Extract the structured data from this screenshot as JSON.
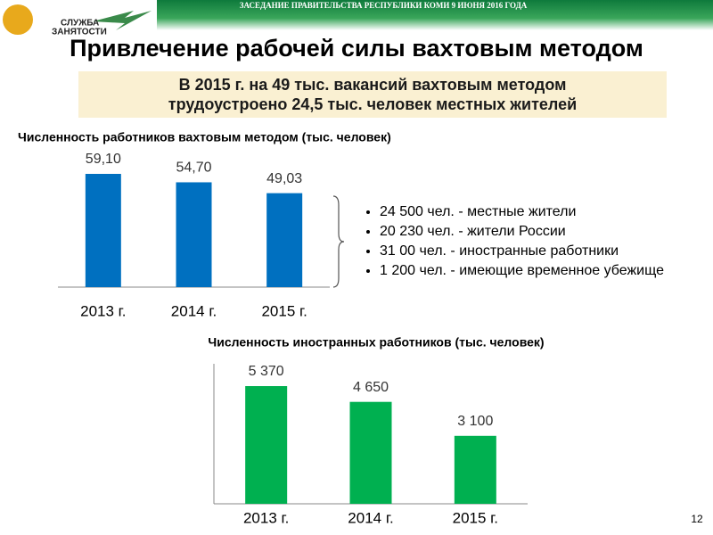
{
  "header": {
    "meeting": "ЗАСЕДАНИЕ ПРАВИТЕЛЬСТВА РЕСПУБЛИКИ КОМИ 9 ИЮНЯ 2016 ГОДА",
    "logo_line1": "СЛУЖБА",
    "logo_line2": "ЗАНЯТОСТИ"
  },
  "title": "Привлечение рабочей силы вахтовым методом",
  "highlight": [
    "В 2015 г. на 49 тыс. вакансий вахтовым методом",
    "трудоустроено 24,5 тыс. человек местных жителей"
  ],
  "bullets": [
    "24 500 чел. - местные жители",
    "20 230 чел. - жители России",
    "31 00 чел. - иностранные работники",
    "1 200 чел. - имеющие временное убежище"
  ],
  "page_number": "12",
  "chart_data": [
    {
      "type": "bar",
      "title": "Численность работников вахтовым методом (тыс. человек)",
      "categories": [
        "2013 г.",
        "2014 г.",
        "2015 г."
      ],
      "values": [
        59.1,
        54.7,
        49.03
      ],
      "value_labels": [
        "59,10",
        "54,70",
        "49,03"
      ],
      "color": "#0070c0"
    },
    {
      "type": "bar",
      "title": "Численность иностранных работников (тыс. человек)",
      "categories": [
        "2013 г.",
        "2014 г.",
        "2015 г."
      ],
      "values": [
        5370,
        4650,
        3100
      ],
      "value_labels": [
        "5 370",
        "4 650",
        "3 100"
      ],
      "color": "#00b050"
    }
  ]
}
